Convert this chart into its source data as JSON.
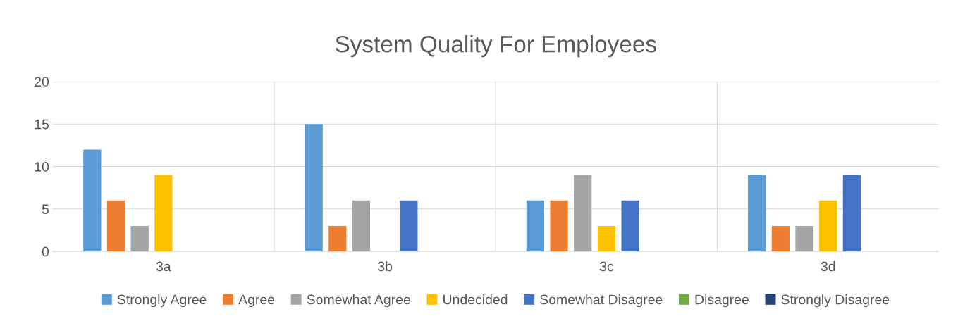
{
  "chart_data": {
    "type": "bar",
    "title": "System Quality For Employees",
    "categories": [
      "3a",
      "3b",
      "3c",
      "3d"
    ],
    "series": [
      {
        "name": "Strongly Agree",
        "color": "#5b9bd5",
        "values": [
          12,
          15,
          6,
          9
        ]
      },
      {
        "name": "Agree",
        "color": "#ed7d31",
        "values": [
          6,
          3,
          6,
          3
        ]
      },
      {
        "name": "Somewhat Agree",
        "color": "#a5a5a5",
        "values": [
          3,
          6,
          9,
          3
        ]
      },
      {
        "name": "Undecided",
        "color": "#ffc000",
        "values": [
          9,
          0,
          3,
          6
        ]
      },
      {
        "name": "Somewhat Disagree",
        "color": "#4472c4",
        "values": [
          0,
          6,
          6,
          9
        ]
      },
      {
        "name": "Disagree",
        "color": "#70ad47",
        "values": [
          0,
          0,
          0,
          0
        ]
      },
      {
        "name": "Strongly Disagree",
        "color": "#264478",
        "values": [
          0,
          0,
          0,
          0
        ]
      }
    ],
    "ylim": [
      0,
      20
    ],
    "yticks": [
      0,
      5,
      10,
      15,
      20
    ],
    "grid": true,
    "legend": "bottom"
  }
}
